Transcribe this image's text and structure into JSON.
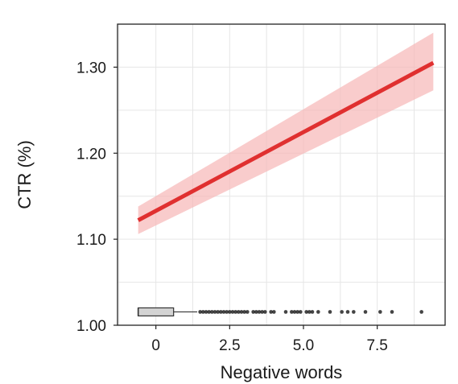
{
  "chart_data": {
    "type": "line",
    "title": "",
    "xlabel": "Negative words",
    "ylabel": "CTR (%)",
    "xlim": [
      -1.3,
      9.8
    ],
    "ylim": [
      1.0,
      1.35
    ],
    "xticks": [
      0,
      2.5,
      5.0,
      7.5
    ],
    "xtick_labels": [
      "0",
      "2.5",
      "5.0",
      "7.5"
    ],
    "yticks": [
      1.0,
      1.1,
      1.2,
      1.3
    ],
    "ytick_labels": [
      "1.00",
      "1.10",
      "1.20",
      "1.30"
    ],
    "grid": true,
    "series": [
      {
        "type": "line",
        "color": "#e03030",
        "x": [
          -0.6,
          9.4
        ],
        "y": [
          1.122,
          1.305
        ],
        "band_lower": [
          1.106,
          1.273
        ],
        "band_upper": [
          1.138,
          1.34
        ],
        "band_color": "#f6b6b6"
      }
    ],
    "boxplot": {
      "y_level": 1.0155,
      "min": -0.6,
      "q1": -0.6,
      "median": -0.6,
      "q3": 0.6,
      "whisker_high": 1.4,
      "fill": "#d3d3d3",
      "outliers": [
        1.5,
        1.6,
        1.7,
        1.8,
        1.9,
        2.0,
        2.1,
        2.2,
        2.3,
        2.4,
        2.5,
        2.6,
        2.7,
        2.8,
        2.9,
        3.0,
        3.1,
        3.3,
        3.4,
        3.5,
        3.6,
        3.7,
        3.9,
        4.0,
        4.4,
        4.6,
        4.7,
        4.8,
        4.9,
        5.1,
        5.2,
        5.3,
        5.5,
        5.9,
        6.3,
        6.5,
        6.7,
        7.1,
        7.6,
        8.0,
        9.0
      ]
    }
  }
}
